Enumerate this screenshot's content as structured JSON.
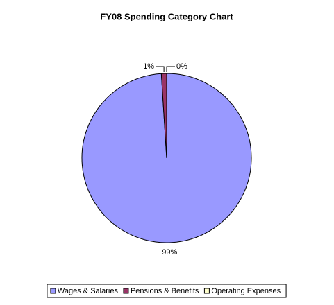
{
  "chart_data": {
    "type": "pie",
    "title": "FY08 Spending Category Chart",
    "categories": [
      "Wages & Salaries",
      "Pensions & Benefits",
      "Operating Expenses"
    ],
    "values": [
      99,
      1,
      0
    ],
    "value_labels": [
      "99%",
      "1%",
      "0%"
    ],
    "colors": [
      "#9999ff",
      "#993366",
      "#ffffcc"
    ],
    "legend": "bottom"
  }
}
